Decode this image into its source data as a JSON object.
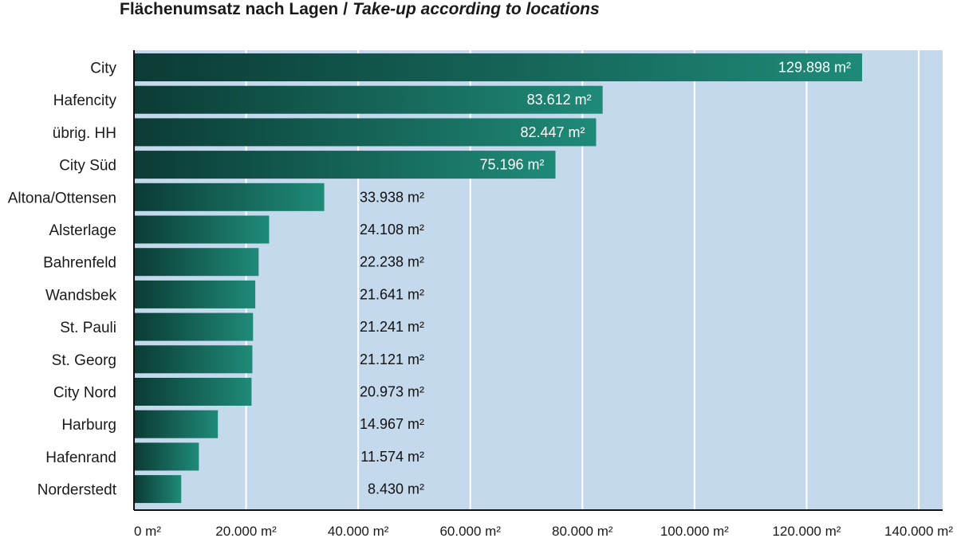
{
  "title": {
    "main": "Flächenumsatz nach Lagen",
    "separator": "/",
    "sub": "Take-up according to locations"
  },
  "colors": {
    "plot_bg": "#c5d9ec",
    "grid": "#ffffff",
    "bar_dark": "#0b3b34",
    "bar_light": "#1f8a78",
    "inside_label": "#ffffff",
    "outside_label": "#111111",
    "axis": "#111111"
  },
  "chart_data": {
    "type": "bar",
    "orientation": "horizontal",
    "categories": [
      "City",
      "Hafencity",
      "übrig. HH",
      "City Süd",
      "Altona/Ottensen",
      "Alsterlage",
      "Bahrenfeld",
      "Wandsbek",
      "St. Pauli",
      "St. Georg",
      "City Nord",
      "Harburg",
      "Hafenrand",
      "Norderstedt"
    ],
    "values": [
      129898,
      83612,
      82447,
      75196,
      33938,
      24108,
      22238,
      21641,
      21241,
      21121,
      20973,
      14967,
      11574,
      8430
    ],
    "value_labels": [
      "129.898 m²",
      "83.612 m²",
      "82.447 m²",
      "75.196 m²",
      "33.938 m²",
      "24.108 m²",
      "22.238 m²",
      "21.641 m²",
      "21.241 m²",
      "21.121 m²",
      "20.973 m²",
      "14.967 m²",
      "11.574 m²",
      "8.430 m²"
    ],
    "xlim": [
      0,
      140000
    ],
    "xticks": [
      0,
      20000,
      40000,
      60000,
      80000,
      100000,
      120000,
      140000
    ],
    "xtick_labels": [
      "0 m²",
      "20.000 m²",
      "40.000 m²",
      "60.000 m²",
      "80.000 m²",
      "100.000 m²",
      "120.000 m²",
      "140.000 m²"
    ],
    "grid": true,
    "xlabel": "",
    "ylabel": ""
  }
}
